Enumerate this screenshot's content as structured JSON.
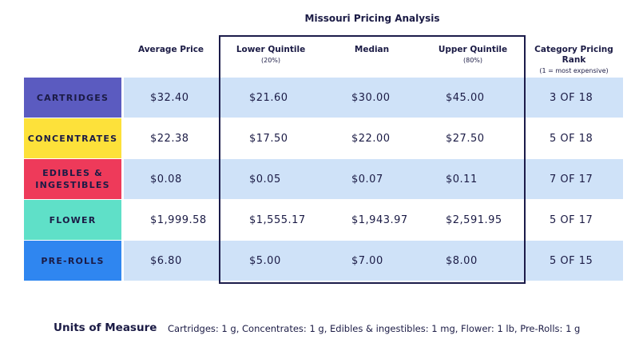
{
  "header": {
    "title": "Missouri Pricing Analysis"
  },
  "table": {
    "columns": [
      {
        "name": "Average Price"
      },
      {
        "name": "Lower Quintile",
        "sub": "(20%)"
      },
      {
        "name": "Median"
      },
      {
        "name": "Upper Quintile",
        "sub": "(80%)"
      },
      {
        "name": "Category Pricing Rank",
        "sub": "(1 = most expensive)"
      }
    ],
    "rows": [
      {
        "label": "CARTRIDGES",
        "cells": [
          "$32.40",
          "$21.60",
          "$30.00",
          "$45.00",
          "3 OF 18"
        ]
      },
      {
        "label": "CONCENTRATES",
        "cells": [
          "$22.38",
          "$17.50",
          "$22.00",
          "$27.50",
          "5 OF 18"
        ]
      },
      {
        "label": "EDIBLES & INGESTIBLES",
        "cells": [
          "$0.08",
          "$0.05",
          "$0.07",
          "$0.11",
          "7 OF 17"
        ]
      },
      {
        "label": "FLOWER",
        "cells": [
          "$1,999.58",
          "$1,555.17",
          "$1,943.97",
          "$2,591.95",
          "5 OF 17"
        ]
      },
      {
        "label": "PRE-ROLLS",
        "cells": [
          "$6.80",
          "$5.00",
          "$7.00",
          "$8.00",
          "5 OF 15"
        ]
      }
    ]
  },
  "footer": {
    "label": "Units of Measure",
    "text": "Cartridges: 1 g, Concentrates: 1 g, Edibles & ingestibles: 1 mg, Flower: 1 lb, Pre-Rolls: 1 g"
  }
}
